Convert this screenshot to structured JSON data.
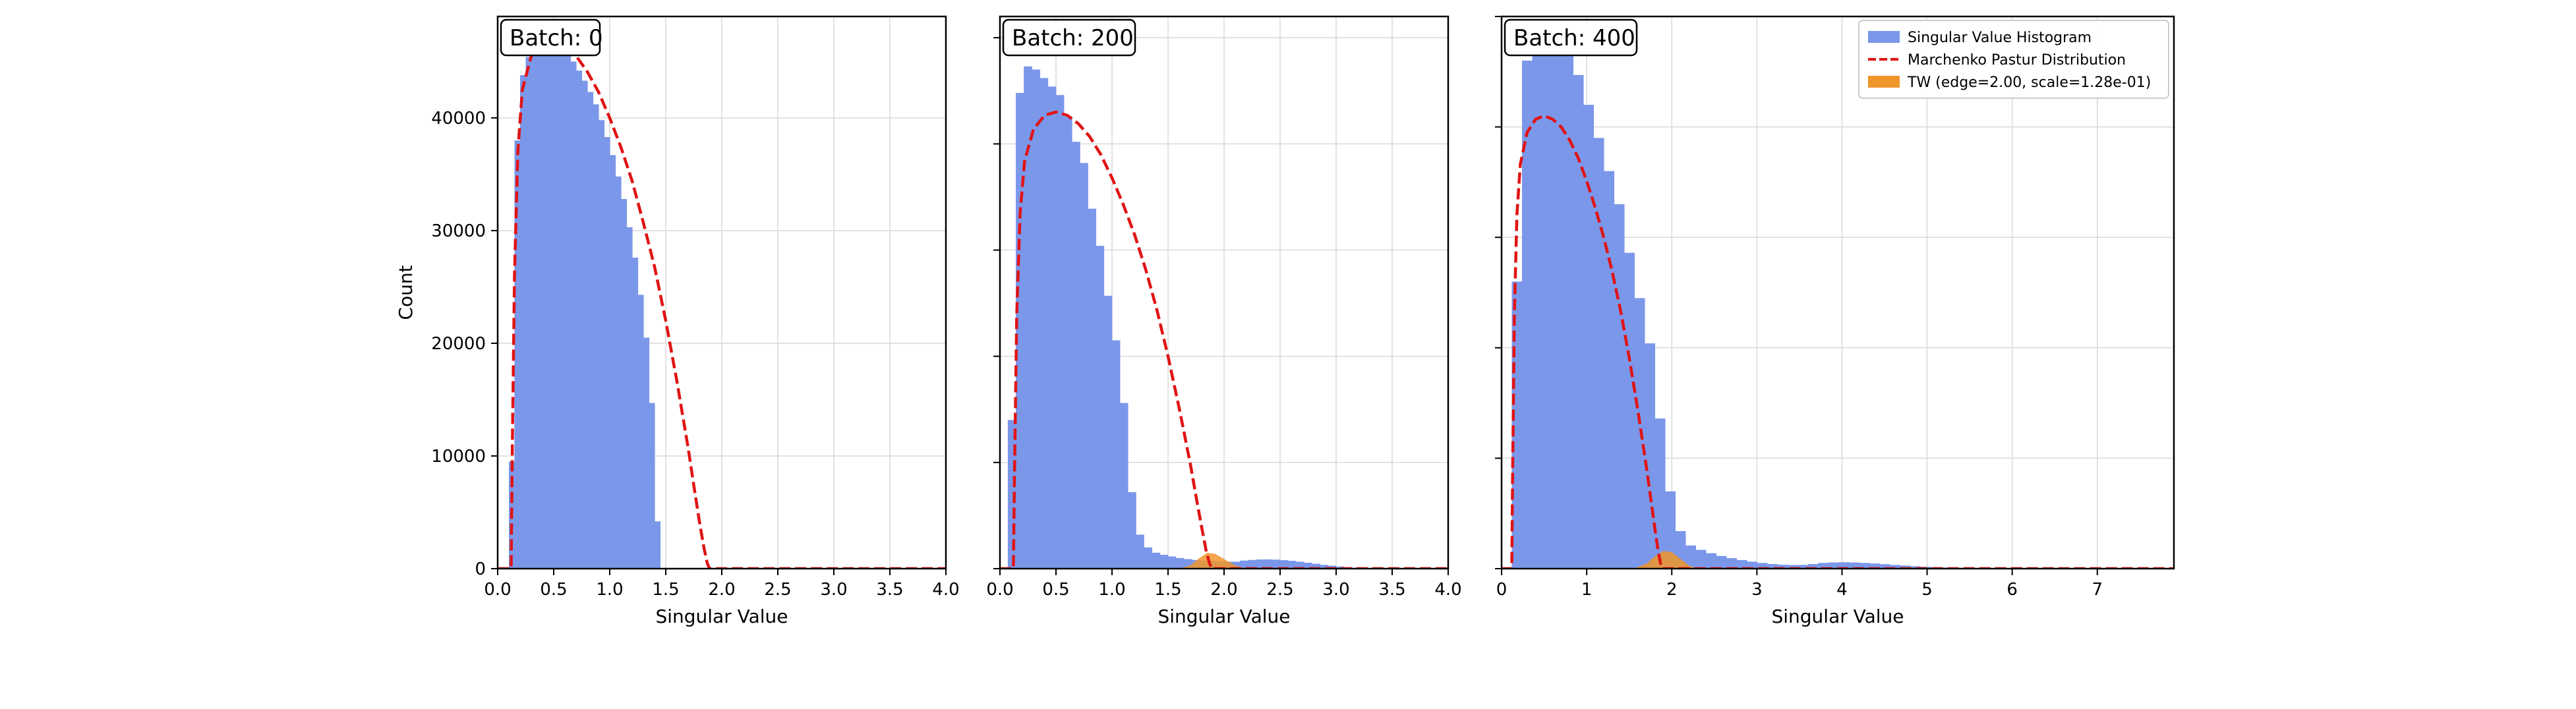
{
  "colors": {
    "histogram": "#7b97ea",
    "marchenko_pastur": "#e01414",
    "tracy_widom": "#f0952a",
    "grid": "#d9d9d9",
    "axes": "#000000"
  },
  "legend": {
    "placement": "top-right of third panel",
    "items": [
      {
        "label": "Singular Value Histogram",
        "kind": "patch",
        "color": "#7b97ea"
      },
      {
        "label": "Marchenko Pastur Distribution",
        "kind": "dashed-line",
        "color": "#e01414"
      },
      {
        "label": "TW (edge=2.00, scale=1.28e-01)",
        "kind": "patch",
        "color": "#f0952a"
      }
    ]
  },
  "chart_data": [
    {
      "type": "bar",
      "panel_label": "Batch: 0",
      "xlabel": "Singular Value",
      "ylabel": "Count",
      "xlim": [
        0,
        4
      ],
      "ylim": [
        0,
        49000
      ],
      "xticks": [
        0.0,
        0.5,
        1.0,
        1.5,
        2.0,
        2.5,
        3.0,
        3.5,
        4.0
      ],
      "xtick_labels": [
        "0.0",
        "0.5",
        "1.0",
        "1.5",
        "2.0",
        "2.5",
        "3.0",
        "3.5",
        "4.0"
      ],
      "yticks": [
        0,
        10000,
        20000,
        30000,
        40000
      ],
      "ytick_labels": [
        "0",
        "10000",
        "20000",
        "30000",
        "40000"
      ],
      "grid": true,
      "histogram": {
        "bin_width": 0.05,
        "edges_start": 0.1,
        "counts": [
          9500,
          38000,
          43800,
          45400,
          46500,
          47000,
          47200,
          47100,
          46800,
          46300,
          45700,
          45000,
          44200,
          43300,
          42300,
          41200,
          39800,
          38300,
          36700,
          34800,
          32800,
          30300,
          27600,
          24300,
          20500,
          14700,
          4200
        ]
      },
      "marchenko_pastur": {
        "x": [
          0.12,
          0.13,
          0.15,
          0.18,
          0.22,
          0.3,
          0.4,
          0.5,
          0.6,
          0.7,
          0.8,
          0.9,
          1.0,
          1.1,
          1.2,
          1.3,
          1.4,
          1.5,
          1.6,
          1.7,
          1.75,
          1.8,
          1.84,
          1.87,
          1.89
        ],
        "y": [
          0,
          10000,
          26000,
          37000,
          42500,
          45500,
          46600,
          46800,
          46400,
          45500,
          44100,
          42300,
          40000,
          37400,
          34400,
          30700,
          26800,
          22000,
          16600,
          10700,
          7400,
          4200,
          1900,
          500,
          0
        ],
        "tail_end": 4.0
      },
      "tracy_widom": null
    },
    {
      "type": "bar",
      "panel_label": "Batch: 200",
      "xlabel": "Singular Value",
      "xlim": [
        0,
        4
      ],
      "ylim": [
        0,
        52000
      ],
      "xticks": [
        0.0,
        0.5,
        1.0,
        1.5,
        2.0,
        2.5,
        3.0,
        3.5,
        4.0
      ],
      "xtick_labels": [
        "0.0",
        "0.5",
        "1.0",
        "1.5",
        "2.0",
        "2.5",
        "3.0",
        "3.5",
        "4.0"
      ],
      "yticks": [
        0,
        10000,
        20000,
        30000,
        40000,
        50000
      ],
      "grid": true,
      "histogram": {
        "bin_width": 0.0714,
        "edges_start": 0.07,
        "counts": [
          14000,
          44800,
          47300,
          47000,
          46200,
          45400,
          44600,
          42600,
          40200,
          38200,
          33900,
          30400,
          25700,
          21500,
          15600,
          7200,
          3200,
          2000,
          1500,
          1300,
          1150,
          1000,
          900,
          820,
          760,
          720,
          680,
          650,
          650,
          760,
          820,
          860,
          870,
          850,
          800,
          740,
          650,
          560,
          460,
          360,
          280,
          200,
          130,
          80,
          40,
          20,
          10,
          5,
          0,
          0,
          0,
          0,
          0,
          0
        ]
      },
      "marchenko_pastur": {
        "x": [
          0.12,
          0.13,
          0.15,
          0.18,
          0.22,
          0.3,
          0.4,
          0.5,
          0.6,
          0.7,
          0.8,
          0.9,
          1.0,
          1.1,
          1.2,
          1.3,
          1.4,
          1.5,
          1.6,
          1.7,
          1.75,
          1.8,
          1.84,
          1.87,
          1.89
        ],
        "y": [
          0,
          9000,
          24000,
          33500,
          38400,
          41400,
          42700,
          43000,
          42700,
          41900,
          40700,
          39000,
          36800,
          34300,
          31500,
          28200,
          24400,
          20000,
          15100,
          9800,
          6800,
          3900,
          1700,
          500,
          0
        ],
        "tail_end": 4.0
      },
      "tracy_widom": {
        "x": [
          1.6,
          1.7,
          1.78,
          1.85,
          1.92,
          2.0,
          2.1,
          2.2
        ],
        "y": [
          0,
          300,
          1000,
          1500,
          1400,
          900,
          300,
          0
        ]
      }
    },
    {
      "type": "bar",
      "panel_label": "Batch: 400",
      "xlabel": "Singular Value",
      "xlim": [
        0,
        7.9
      ],
      "ylim": [
        0,
        50000
      ],
      "xticks": [
        0,
        1,
        2,
        3,
        4,
        5,
        6,
        7
      ],
      "xtick_labels": [
        "0",
        "1",
        "2",
        "3",
        "4",
        "5",
        "6",
        "7"
      ],
      "yticks": [
        0,
        10000,
        20000,
        30000,
        40000,
        50000
      ],
      "grid": true,
      "histogram": {
        "bin_width": 0.12,
        "edges_start": 0.12,
        "counts": [
          26000,
          46000,
          48200,
          48800,
          48000,
          46500,
          44700,
          42000,
          39000,
          36000,
          33000,
          28600,
          24500,
          20400,
          13600,
          7000,
          3400,
          2100,
          1700,
          1400,
          1150,
          950,
          780,
          640,
          520,
          420,
          360,
          330,
          340,
          420,
          520,
          560,
          580,
          560,
          520,
          470,
          410,
          340,
          280,
          220,
          170,
          130,
          100,
          80,
          60,
          50,
          40,
          30,
          25,
          20,
          16,
          12,
          10,
          8,
          6,
          5,
          4,
          3,
          2,
          1
        ]
      },
      "marchenko_pastur": {
        "x": [
          0.12,
          0.13,
          0.15,
          0.18,
          0.22,
          0.3,
          0.4,
          0.5,
          0.6,
          0.7,
          0.8,
          0.9,
          1.0,
          1.1,
          1.2,
          1.3,
          1.4,
          1.5,
          1.6,
          1.7,
          1.75,
          1.8,
          1.84,
          1.87,
          1.89
        ],
        "y": [
          0,
          8600,
          22800,
          32000,
          36600,
          39500,
          40700,
          41000,
          40700,
          40000,
          38800,
          37200,
          35100,
          32700,
          30000,
          26900,
          23300,
          19100,
          14400,
          9300,
          6500,
          3700,
          1600,
          400,
          0
        ],
        "tail_end": 7.9
      },
      "tracy_widom": {
        "x": [
          1.55,
          1.7,
          1.8,
          1.9,
          2.0,
          2.1,
          2.2,
          2.3
        ],
        "y": [
          0,
          450,
          1100,
          1600,
          1500,
          900,
          300,
          0
        ]
      }
    }
  ]
}
